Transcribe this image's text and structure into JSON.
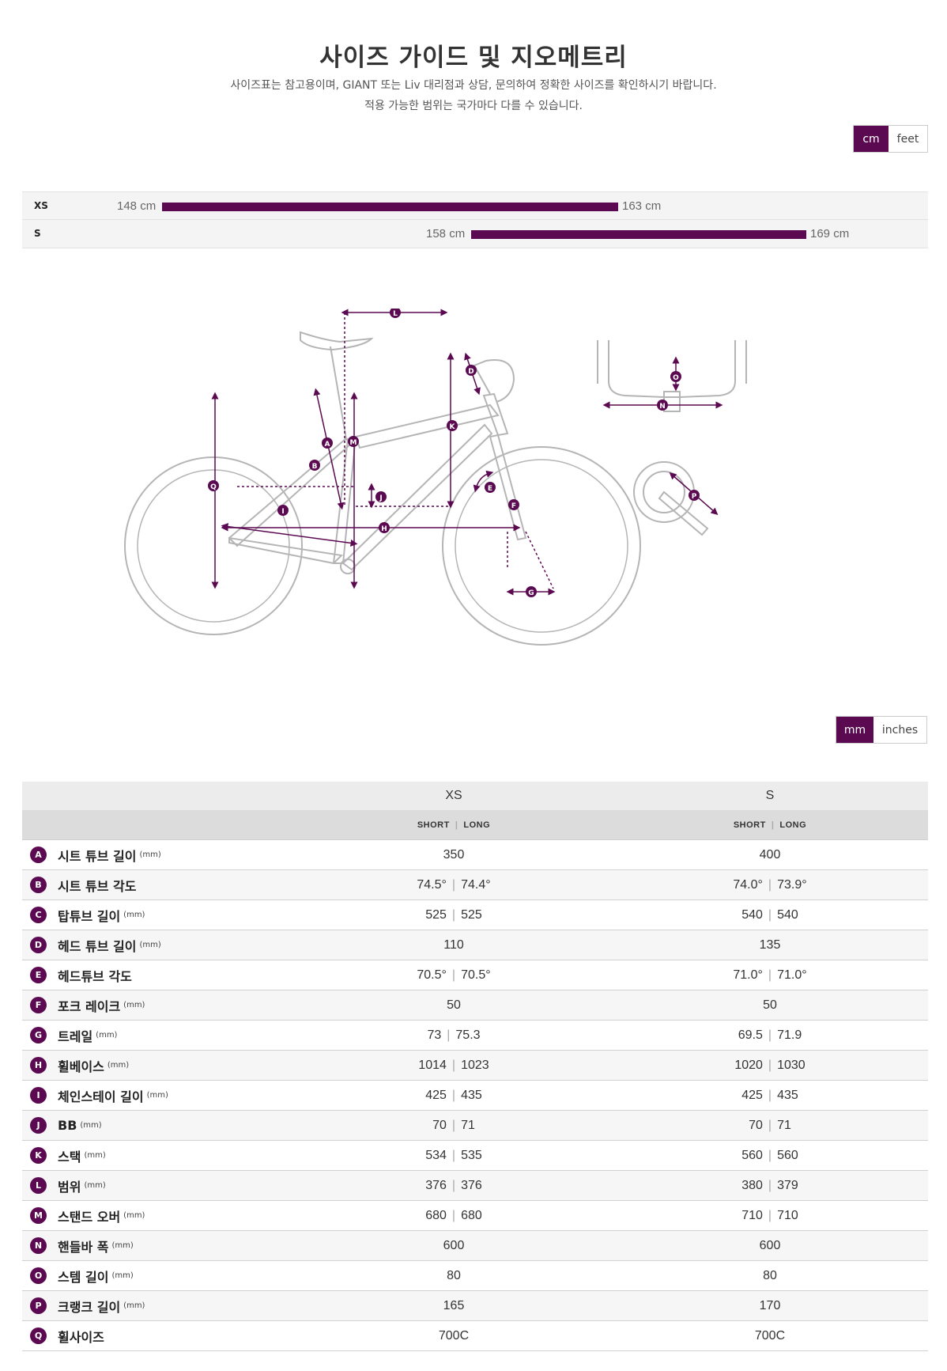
{
  "title": "사이즈 가이드 및 지오메트리",
  "description_line1": "사이즈표는 참고용이며, GIANT 또는 Liv 대리점과 상담, 문의하여 정확한 사이즈를 확인하시기 바랍니다.",
  "description_line2": "적용 가능한 범위는 국가마다 다를 수 있습니다.",
  "unit_toggle_height": {
    "active": "cm",
    "inactive": "feet"
  },
  "size_ranges": [
    {
      "size": "XS",
      "min_label": "148 cm",
      "max_label": "163 cm"
    },
    {
      "size": "S",
      "min_label": "158 cm",
      "max_label": "169 cm"
    }
  ],
  "unit_toggle_geometry": {
    "active": "mm",
    "inactive": "inches"
  },
  "diagram_labels": [
    "A",
    "B",
    "C",
    "D",
    "E",
    "F",
    "G",
    "H",
    "I",
    "J",
    "K",
    "L",
    "M",
    "N",
    "O",
    "P",
    "Q"
  ],
  "table": {
    "sizes": [
      "XS",
      "S"
    ],
    "subheader": [
      "SHORT",
      "LONG"
    ],
    "rows": [
      {
        "letter": "A",
        "name": "시트 튜브 길이",
        "unit": "(mm)",
        "xs": [
          "350"
        ],
        "s": [
          "400"
        ]
      },
      {
        "letter": "B",
        "name": "시트 튜브 각도",
        "unit": "",
        "xs": [
          "74.5°",
          "74.4°"
        ],
        "s": [
          "74.0°",
          "73.9°"
        ]
      },
      {
        "letter": "C",
        "name": "탑튜브 길이",
        "unit": "(mm)",
        "xs": [
          "525",
          "525"
        ],
        "s": [
          "540",
          "540"
        ]
      },
      {
        "letter": "D",
        "name": "헤드 튜브 길이",
        "unit": "(mm)",
        "xs": [
          "110"
        ],
        "s": [
          "135"
        ]
      },
      {
        "letter": "E",
        "name": "헤드튜브 각도",
        "unit": "",
        "xs": [
          "70.5°",
          "70.5°"
        ],
        "s": [
          "71.0°",
          "71.0°"
        ]
      },
      {
        "letter": "F",
        "name": "포크 레이크",
        "unit": "(mm)",
        "xs": [
          "50"
        ],
        "s": [
          "50"
        ]
      },
      {
        "letter": "G",
        "name": "트레일",
        "unit": "(mm)",
        "xs": [
          "73",
          "75.3"
        ],
        "s": [
          "69.5",
          "71.9"
        ]
      },
      {
        "letter": "H",
        "name": "휠베이스",
        "unit": "(mm)",
        "xs": [
          "1014",
          "1023"
        ],
        "s": [
          "1020",
          "1030"
        ]
      },
      {
        "letter": "I",
        "name": "체인스테이 길이",
        "unit": "(mm)",
        "xs": [
          "425",
          "435"
        ],
        "s": [
          "425",
          "435"
        ]
      },
      {
        "letter": "J",
        "name": "BB",
        "unit": "(mm)",
        "xs": [
          "70",
          "71"
        ],
        "s": [
          "70",
          "71"
        ]
      },
      {
        "letter": "K",
        "name": "스택",
        "unit": "(mm)",
        "xs": [
          "534",
          "535"
        ],
        "s": [
          "560",
          "560"
        ]
      },
      {
        "letter": "L",
        "name": "범위",
        "unit": "(mm)",
        "xs": [
          "376",
          "376"
        ],
        "s": [
          "380",
          "379"
        ]
      },
      {
        "letter": "M",
        "name": "스탠드 오버",
        "unit": "(mm)",
        "xs": [
          "680",
          "680"
        ],
        "s": [
          "710",
          "710"
        ]
      },
      {
        "letter": "N",
        "name": "핸들바 폭",
        "unit": "(mm)",
        "xs": [
          "600"
        ],
        "s": [
          "600"
        ]
      },
      {
        "letter": "O",
        "name": "스템 길이",
        "unit": "(mm)",
        "xs": [
          "80"
        ],
        "s": [
          "80"
        ]
      },
      {
        "letter": "P",
        "name": "크랭크 길이",
        "unit": "(mm)",
        "xs": [
          "165"
        ],
        "s": [
          "170"
        ]
      },
      {
        "letter": "Q",
        "name": "휠사이즈",
        "unit": "",
        "xs": [
          "700C"
        ],
        "s": [
          "700C"
        ]
      }
    ]
  },
  "colors": {
    "accent": "#5b0a52",
    "bike_line": "#b5b5b5",
    "row_alt": "#f6f6f6"
  }
}
